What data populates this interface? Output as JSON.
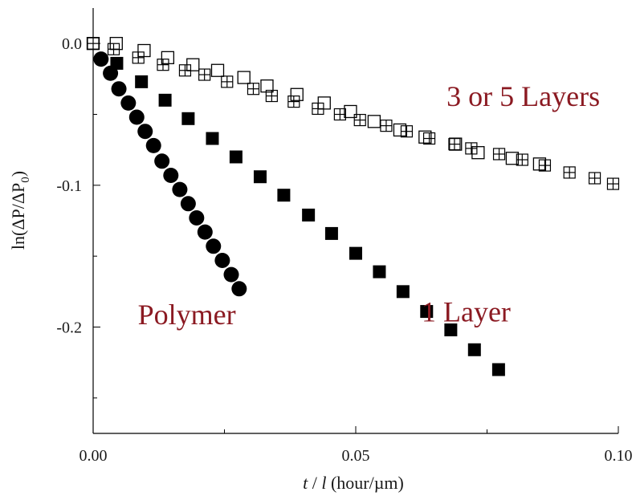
{
  "chart_data": {
    "type": "scatter",
    "xlabel": "t / l (hour/µm)",
    "xlabel_parts": {
      "t": "t",
      "sep": " / ",
      "l": "l",
      "unit": " (hour/µm)"
    },
    "ylabel": "ln(ΔP/ΔP0)",
    "ylabel_parts": {
      "main": "ln(ΔP/ΔP",
      "sub": "0",
      "close": ")"
    },
    "xlim": [
      0.0,
      0.1
    ],
    "ylim": [
      -0.275,
      0.025
    ],
    "xticks": [
      {
        "value": 0.0,
        "label": "0.00"
      },
      {
        "value": 0.05,
        "label": "0.05"
      },
      {
        "value": 0.1,
        "label": "0.10"
      }
    ],
    "yticks": [
      {
        "value": 0.0,
        "label": "0.0"
      },
      {
        "value": -0.1,
        "label": "-0.1"
      },
      {
        "value": -0.2,
        "label": "-0.2"
      }
    ],
    "grid": false,
    "annotation_color": "#8b1a22",
    "series": [
      {
        "name": "Polymer",
        "marker": "filled-circle",
        "color": "#000000",
        "points": [
          [
            0.0015,
            -0.011
          ],
          [
            0.0033,
            -0.021
          ],
          [
            0.0049,
            -0.032
          ],
          [
            0.0067,
            -0.042
          ],
          [
            0.0083,
            -0.052
          ],
          [
            0.0099,
            -0.062
          ],
          [
            0.0115,
            -0.072
          ],
          [
            0.0131,
            -0.083
          ],
          [
            0.0148,
            -0.093
          ],
          [
            0.0165,
            -0.103
          ],
          [
            0.0181,
            -0.113
          ],
          [
            0.0197,
            -0.123
          ],
          [
            0.0213,
            -0.133
          ],
          [
            0.0229,
            -0.143
          ],
          [
            0.0246,
            -0.153
          ],
          [
            0.0263,
            -0.163
          ],
          [
            0.0278,
            -0.173
          ]
        ]
      },
      {
        "name": "1 Layer",
        "marker": "filled-square",
        "color": "#000000",
        "points": [
          [
            0.0045,
            -0.014
          ],
          [
            0.0092,
            -0.027
          ],
          [
            0.0137,
            -0.04
          ],
          [
            0.0181,
            -0.053
          ],
          [
            0.0227,
            -0.067
          ],
          [
            0.0272,
            -0.08
          ],
          [
            0.0318,
            -0.094
          ],
          [
            0.0363,
            -0.107
          ],
          [
            0.041,
            -0.121
          ],
          [
            0.0454,
            -0.134
          ],
          [
            0.05,
            -0.148
          ],
          [
            0.0545,
            -0.161
          ],
          [
            0.059,
            -0.175
          ],
          [
            0.0635,
            -0.189
          ],
          [
            0.0681,
            -0.202
          ],
          [
            0.0726,
            -0.216
          ],
          [
            0.0772,
            -0.23
          ]
        ]
      },
      {
        "name": "3 or 5 Layers",
        "marker": "open-square",
        "color": "#000000",
        "points": [
          [
            0.0,
            0.0
          ],
          [
            0.0044,
            0.0
          ],
          [
            0.0097,
            -0.005
          ],
          [
            0.0142,
            -0.01
          ],
          [
            0.019,
            -0.015
          ],
          [
            0.0237,
            -0.019
          ],
          [
            0.0287,
            -0.024
          ],
          [
            0.0331,
            -0.03
          ],
          [
            0.0388,
            -0.036
          ],
          [
            0.044,
            -0.042
          ],
          [
            0.049,
            -0.048
          ],
          [
            0.0535,
            -0.055
          ],
          [
            0.0584,
            -0.061
          ],
          [
            0.0632,
            -0.066
          ],
          [
            0.069,
            -0.071
          ],
          [
            0.0733,
            -0.077
          ],
          [
            0.0798,
            -0.081
          ],
          [
            0.085,
            -0.085
          ]
        ]
      },
      {
        "name": "3 or 5 Layers",
        "marker": "crossed-square",
        "color": "#000000",
        "points": [
          [
            0.0,
            0.0
          ],
          [
            0.0039,
            -0.004
          ],
          [
            0.0086,
            -0.01
          ],
          [
            0.0133,
            -0.015
          ],
          [
            0.0175,
            -0.019
          ],
          [
            0.0212,
            -0.022
          ],
          [
            0.0255,
            -0.027
          ],
          [
            0.0305,
            -0.032
          ],
          [
            0.034,
            -0.037
          ],
          [
            0.0382,
            -0.041
          ],
          [
            0.0428,
            -0.046
          ],
          [
            0.047,
            -0.05
          ],
          [
            0.0508,
            -0.054
          ],
          [
            0.0558,
            -0.058
          ],
          [
            0.0597,
            -0.062
          ],
          [
            0.064,
            -0.067
          ],
          [
            0.0688,
            -0.071
          ],
          [
            0.072,
            -0.074
          ],
          [
            0.0773,
            -0.078
          ],
          [
            0.0817,
            -0.082
          ],
          [
            0.086,
            -0.086
          ],
          [
            0.0907,
            -0.091
          ],
          [
            0.0955,
            -0.095
          ],
          [
            0.099,
            -0.099
          ]
        ]
      }
    ],
    "annotations": [
      {
        "text": "Polymer",
        "anchor": [
          0.0085,
          -0.198
        ]
      },
      {
        "text": "1 Layer",
        "anchor": [
          0.0795,
          -0.196
        ]
      },
      {
        "text": "3 or 5 Layers",
        "anchor": [
          0.0965,
          -0.044
        ]
      }
    ]
  }
}
